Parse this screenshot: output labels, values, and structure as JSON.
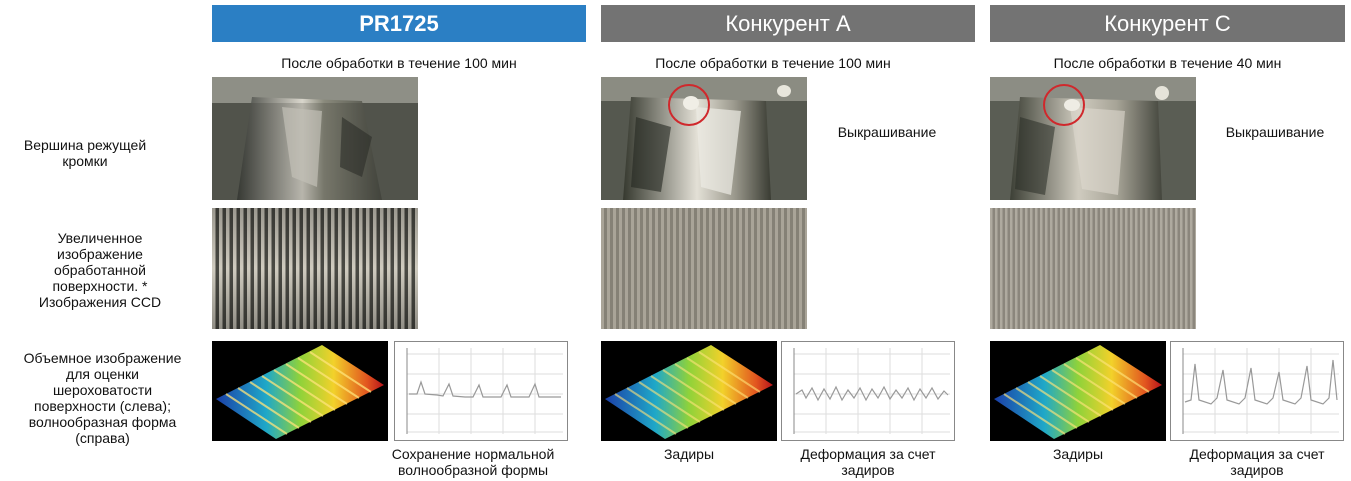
{
  "row_labels": {
    "edge": "Вершина режущей кромки",
    "surface": "Увеличенное изображение обработанной поверхности. * Изображения CCD",
    "volume": "Объемное изображение для оценки шероховатости поверхности (слева); волнообразная форма (справа)"
  },
  "columns": [
    {
      "title": "PR1725",
      "caption": "После обработки в течение 100 мин",
      "edge_note": "",
      "bottom_left_note": "",
      "bottom_right_note": "Сохранение нормальной волнообразной формы"
    },
    {
      "title": "Конкурент A",
      "caption": "После обработки в течение 100 мин",
      "edge_note": "Выкрашивание",
      "bottom_left_note": "Задиры",
      "bottom_right_note": "Деформация за счет задиров"
    },
    {
      "title": "Конкурент C",
      "caption": "После обработки в течение 40 мин",
      "edge_note": "Выкрашивание",
      "bottom_left_note": "Задиры",
      "bottom_right_note": "Деформация за счет задиров"
    }
  ],
  "colors": {
    "header_main": "#2b7fc4",
    "header_competitor": "#737373",
    "highlight_circle": "#d0282c"
  }
}
